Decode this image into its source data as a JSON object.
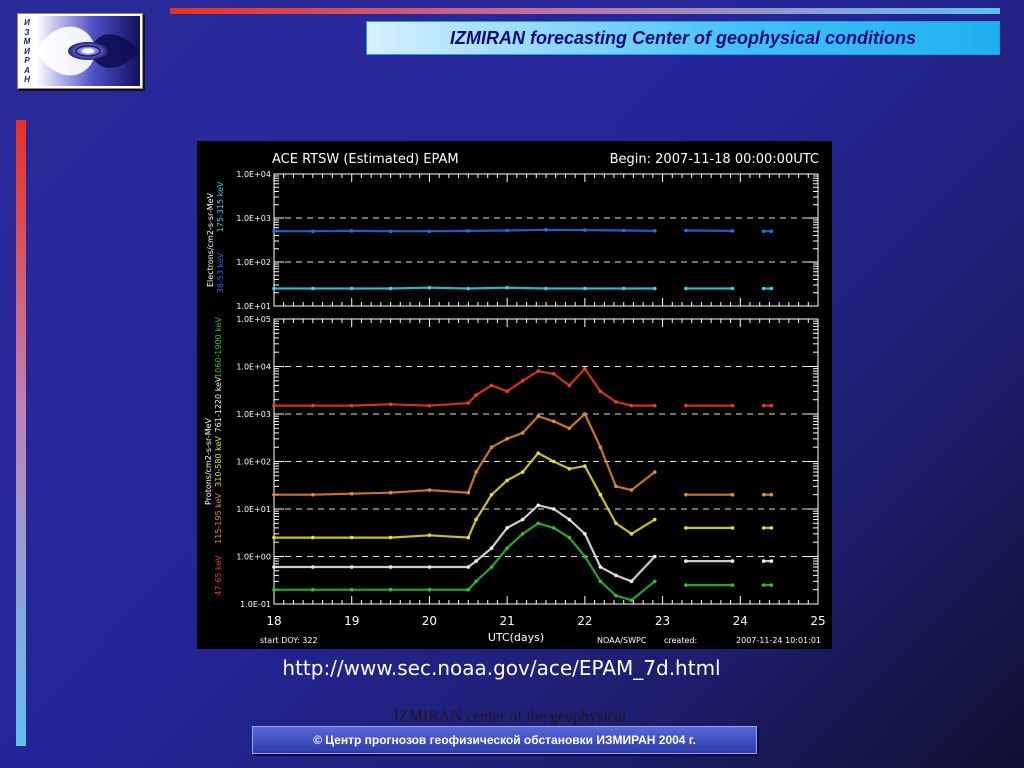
{
  "header": {
    "logo_letters": [
      "И",
      "З",
      "М",
      "И",
      "Р",
      "А",
      "Н"
    ],
    "title": "IZMIRAN forecasting Center of geophysical conditions"
  },
  "main": {
    "url": "http://www.sec.noaa.gov/ace/EPAM_7d.html"
  },
  "footer": {
    "copyright": "©  Центр прогнозов геофизической обстановки ИЗМИРАН  2004 г.",
    "note": "IZMIRAN center of the geophysical forecasting, 2004"
  },
  "colors": {
    "title_text": "#0a0a7a",
    "accent_red": "#e83020",
    "accent_cyan": "#60c0f0",
    "plot_background": "#000000"
  },
  "chart_data": {
    "type": "scatter",
    "title": "ACE RTSW (Estimated) EPAM",
    "begin": "Begin: 2007-11-18  00:00:00UTC",
    "xlabel": "UTC(days)",
    "x_ticks": [
      "18",
      "19",
      "20",
      "21",
      "22",
      "23",
      "24",
      "25"
    ],
    "xlim": [
      18,
      25
    ],
    "start_doy": "start DOY:   322",
    "source": "NOAA/SWPC",
    "created_label": "created:",
    "created": "2007-11-24 10:01:01",
    "y_scale": "log",
    "grid": "dashed lines at each decade",
    "panels": [
      {
        "ylabel": "Electrons/cm2-s-sr-MeV",
        "ylim": [
          10,
          10000
        ],
        "y_ticks": [
          "1.0E+04",
          "1.0E+03",
          "1.0E+02",
          "1.0E+01"
        ],
        "series": [
          {
            "name": "38-53 keV",
            "color": "#2a6ae8",
            "x": [
              18.0,
              18.5,
              19.0,
              19.5,
              20.0,
              20.5,
              21.0,
              21.5,
              22.0,
              22.5,
              22.9,
              23.3,
              23.9,
              24.3,
              24.4
            ],
            "values": [
              500,
              500,
              510,
              500,
              500,
              510,
              520,
              540,
              530,
              520,
              510,
              520,
              510,
              500,
              500
            ]
          },
          {
            "name": "175-315 keV",
            "color": "#30d8e8",
            "x": [
              18.0,
              18.5,
              19.0,
              19.5,
              20.0,
              20.5,
              21.0,
              21.5,
              22.0,
              22.5,
              22.9,
              23.3,
              23.9,
              24.3,
              24.4
            ],
            "values": [
              25,
              25,
              25,
              25,
              26,
              25,
              26,
              25,
              25,
              25,
              25,
              25,
              25,
              25,
              25
            ]
          }
        ]
      },
      {
        "ylabel": "Protons/cm2-s-sr-MeV",
        "ylim": [
          0.1,
          100000
        ],
        "y_ticks": [
          "1.0E+05",
          "1.0E+04",
          "1.0E+03",
          "1.0E+02",
          "1.0E+01",
          "1.0E+00",
          "1.0E-01"
        ],
        "series": [
          {
            "name": "47-65 keV",
            "color": "#e84020",
            "x": [
              18.0,
              18.5,
              19.0,
              19.5,
              20.0,
              20.5,
              20.6,
              20.8,
              21.0,
              21.2,
              21.4,
              21.6,
              21.8,
              22.0,
              22.2,
              22.4,
              22.6,
              22.9,
              23.3,
              23.9,
              24.3,
              24.4
            ],
            "values": [
              1500,
              1500,
              1500,
              1600,
              1500,
              1700,
              2500,
              4000,
              3000,
              5000,
              8000,
              7000,
              4000,
              9000,
              3000,
              1800,
              1500,
              1500,
              1500,
              1500,
              1500,
              1500
            ]
          },
          {
            "name": "115-195 keV",
            "color": "#e88a30",
            "x": [
              18.0,
              18.5,
              19.0,
              19.5,
              20.0,
              20.5,
              20.6,
              20.8,
              21.0,
              21.2,
              21.4,
              21.6,
              21.8,
              22.0,
              22.2,
              22.4,
              22.6,
              22.9,
              23.3,
              23.9,
              24.3,
              24.4
            ],
            "values": [
              20,
              20,
              21,
              22,
              25,
              22,
              60,
              200,
              300,
              400,
              900,
              700,
              500,
              1000,
              200,
              30,
              25,
              60,
              20,
              20,
              20,
              20
            ]
          },
          {
            "name": "310-580 keV",
            "color": "#e8e030",
            "x": [
              18.0,
              18.5,
              19.0,
              19.5,
              20.0,
              20.5,
              20.6,
              20.8,
              21.0,
              21.2,
              21.4,
              21.6,
              21.8,
              22.0,
              22.2,
              22.4,
              22.6,
              22.9,
              23.3,
              23.9,
              24.3,
              24.4
            ],
            "values": [
              2.5,
              2.5,
              2.5,
              2.5,
              2.8,
              2.5,
              6,
              20,
              40,
              60,
              150,
              100,
              70,
              80,
              20,
              5,
              3,
              6,
              4,
              4,
              4,
              4
            ]
          },
          {
            "name": "761-1220 keV",
            "color": "#f0f0f0",
            "x": [
              18.0,
              18.5,
              19.0,
              19.5,
              20.0,
              20.5,
              20.6,
              20.8,
              21.0,
              21.2,
              21.4,
              21.6,
              21.8,
              22.0,
              22.2,
              22.4,
              22.6,
              22.9,
              23.3,
              23.9,
              24.3,
              24.4
            ],
            "values": [
              0.6,
              0.6,
              0.6,
              0.6,
              0.6,
              0.6,
              0.8,
              1.5,
              4,
              6,
              12,
              10,
              6,
              3,
              0.6,
              0.4,
              0.3,
              1,
              0.8,
              0.8,
              0.8,
              0.8
            ]
          },
          {
            "name": "1060-1900 keV",
            "color": "#30c030",
            "x": [
              18.0,
              18.5,
              19.0,
              19.5,
              20.0,
              20.5,
              20.6,
              20.8,
              21.0,
              21.2,
              21.4,
              21.6,
              21.8,
              22.0,
              22.2,
              22.4,
              22.6,
              22.9,
              23.3,
              23.9,
              24.3,
              24.4
            ],
            "values": [
              0.2,
              0.2,
              0.2,
              0.2,
              0.2,
              0.2,
              0.3,
              0.6,
              1.5,
              3,
              5,
              4,
              2.5,
              1,
              0.3,
              0.15,
              0.12,
              0.3,
              0.25,
              0.25,
              0.25,
              0.25
            ]
          }
        ]
      }
    ]
  }
}
